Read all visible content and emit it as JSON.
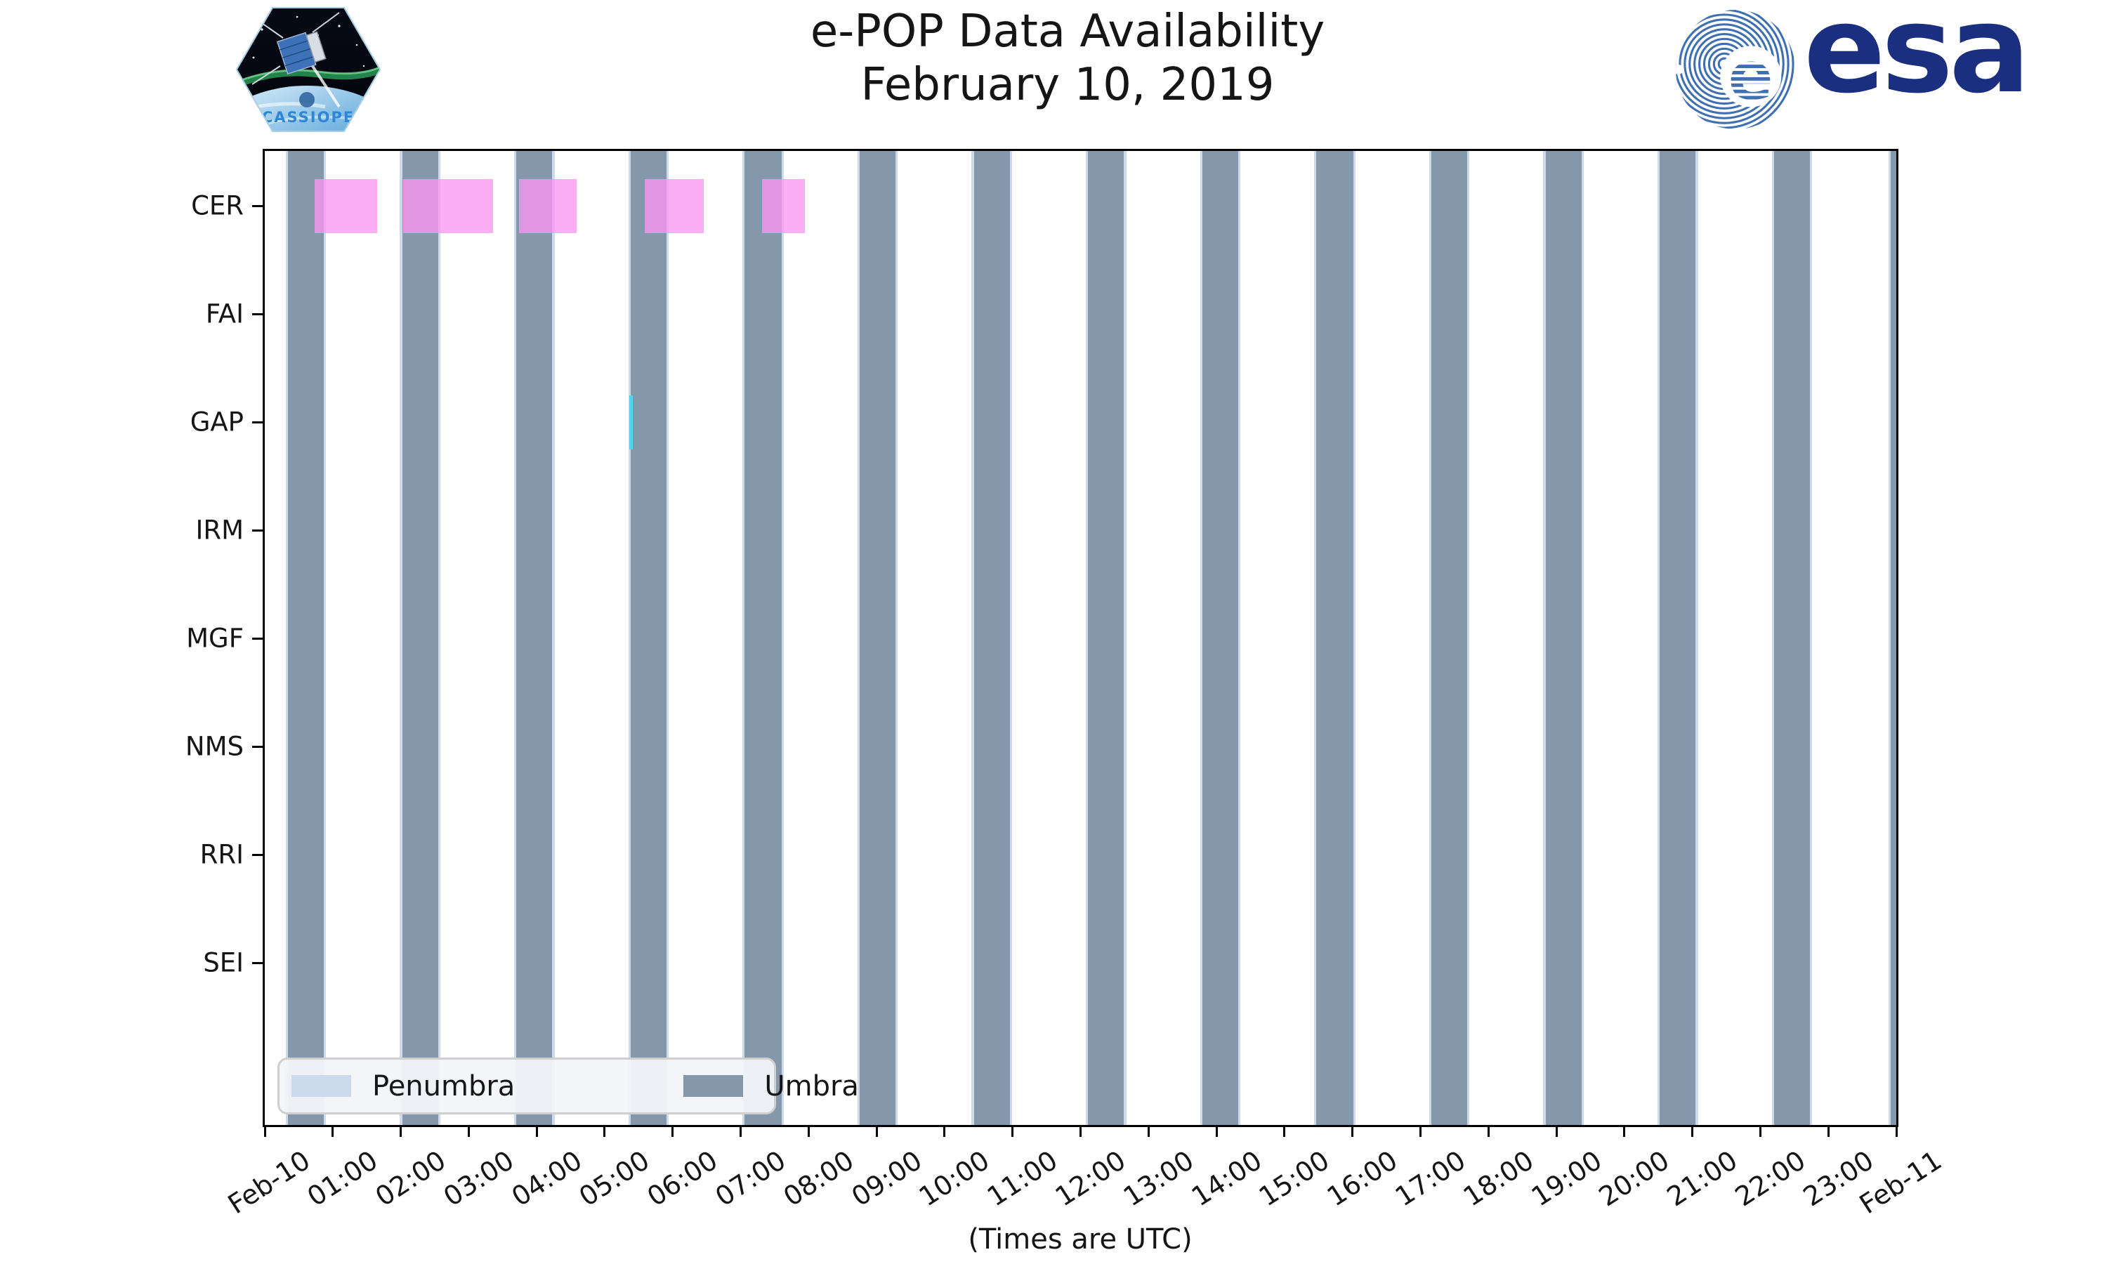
{
  "header": {
    "title_line1": "e-POP Data Availability",
    "title_line2": "February 10, 2019"
  },
  "logos": {
    "cassiope_text": "CASSIOPE",
    "esa_text": "esa"
  },
  "axes": {
    "y_labels": [
      "CER",
      "FAI",
      "GAP",
      "IRM",
      "MGF",
      "NMS",
      "RRI",
      "SEI"
    ],
    "x_tick_labels": [
      "Feb-10",
      "01:00",
      "02:00",
      "03:00",
      "04:00",
      "05:00",
      "06:00",
      "07:00",
      "08:00",
      "09:00",
      "10:00",
      "11:00",
      "12:00",
      "13:00",
      "14:00",
      "15:00",
      "16:00",
      "17:00",
      "18:00",
      "19:00",
      "20:00",
      "21:00",
      "22:00",
      "23:00",
      "Feb-11"
    ],
    "x_caption": "(Times are UTC)"
  },
  "legend": {
    "items": [
      {
        "label": "Penumbra",
        "color": "#CCDAEB"
      },
      {
        "label": "Umbra",
        "color": "#8597AB"
      }
    ]
  },
  "chart_data": {
    "type": "timeline",
    "title": "e-POP Data Availability",
    "subtitle": "February 10, 2019",
    "x_axis": {
      "start": "Feb-10 00:00 UTC",
      "end": "Feb-11 00:00 UTC",
      "span_hours": 24,
      "tick_every_hours": 1
    },
    "rows": [
      "CER",
      "FAI",
      "GAP",
      "IRM",
      "MGF",
      "NMS",
      "RRI",
      "SEI"
    ],
    "colors": {
      "umbra": "#8597AB",
      "penumbra": "#CCDAEB",
      "cer": "rgba(251,150,242,0.77)",
      "gap": "#55D2F0"
    },
    "umbra_intervals_hours": [
      [
        0.34,
        0.87
      ],
      [
        2.02,
        2.55
      ],
      [
        3.7,
        4.23
      ],
      [
        5.38,
        5.91
      ],
      [
        7.06,
        7.6
      ],
      [
        8.75,
        9.28
      ],
      [
        10.43,
        10.96
      ],
      [
        12.11,
        12.64
      ],
      [
        13.79,
        14.32
      ],
      [
        15.47,
        16.01
      ],
      [
        17.16,
        17.69
      ],
      [
        18.84,
        19.37
      ],
      [
        20.52,
        21.05
      ],
      [
        22.2,
        22.73
      ],
      [
        23.92,
        24.45
      ]
    ],
    "penumbra_halfwidth_hours": 0.033,
    "availability": [
      {
        "instrument": "CER",
        "color_key": "cer",
        "intervals_hours": [
          [
            0.73,
            1.65
          ],
          [
            2.04,
            3.36
          ],
          [
            3.74,
            4.59
          ],
          [
            5.59,
            6.46
          ],
          [
            7.31,
            7.95
          ]
        ]
      },
      {
        "instrument": "GAP",
        "color_key": "gap",
        "intervals_hours": [
          [
            5.36,
            5.41
          ]
        ]
      }
    ],
    "legend": [
      "Penumbra",
      "Umbra"
    ],
    "legend_position": "lower left",
    "grid": false
  }
}
